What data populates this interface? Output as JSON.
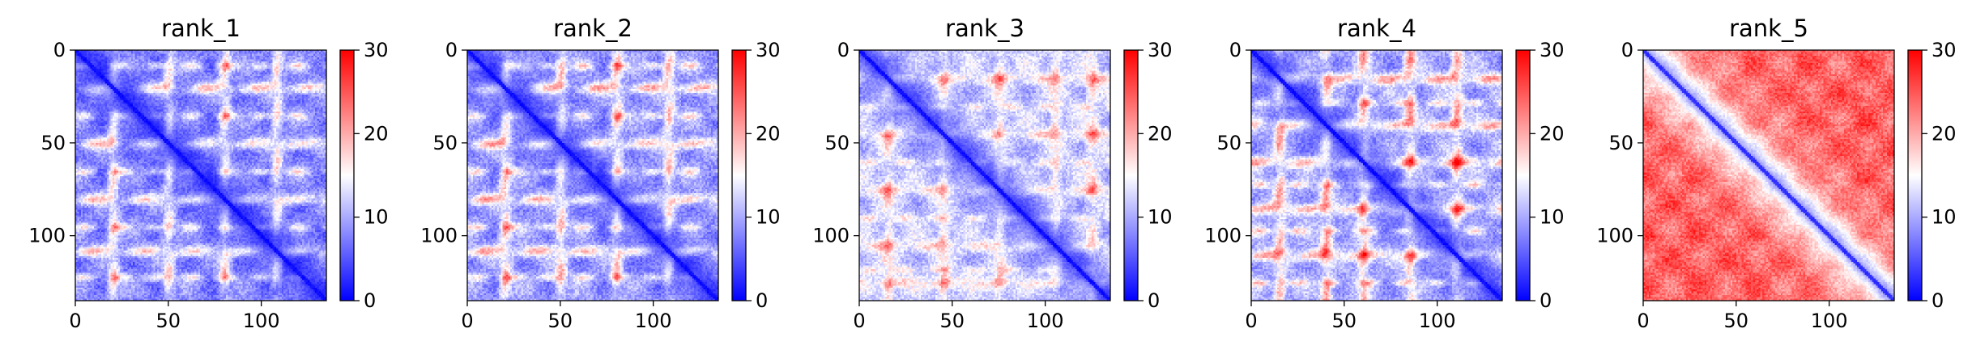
{
  "chart_data": [
    {
      "type": "heatmap",
      "title": "rank_1",
      "xlim": [
        0,
        135
      ],
      "ylim": [
        135,
        0
      ],
      "x_ticks": [
        0,
        50,
        100
      ],
      "y_ticks": [
        0,
        50,
        100
      ],
      "colorbar": {
        "min": 0,
        "max": 30,
        "ticks": [
          0,
          10,
          20,
          30
        ],
        "colormap": "bwr",
        "colors": [
          "#0000ff",
          "#ffffff",
          "#ff0000"
        ]
      },
      "pattern": {
        "diagonal_value": 0,
        "background_value": 8,
        "band_value": 22,
        "band_rows": [
          20,
          50,
          80,
          108
        ],
        "spot_rows": [
          8,
          35,
          65,
          95,
          122
        ],
        "band_strength": 0.8
      }
    },
    {
      "type": "heatmap",
      "title": "rank_2",
      "xlim": [
        0,
        135
      ],
      "ylim": [
        135,
        0
      ],
      "x_ticks": [
        0,
        50,
        100
      ],
      "y_ticks": [
        0,
        50,
        100
      ],
      "colorbar": {
        "min": 0,
        "max": 30,
        "ticks": [
          0,
          10,
          20,
          30
        ],
        "colormap": "bwr",
        "colors": [
          "#0000ff",
          "#ffffff",
          "#ff0000"
        ]
      },
      "pattern": {
        "diagonal_value": 0,
        "background_value": 9,
        "band_value": 23,
        "band_rows": [
          20,
          50,
          80,
          108
        ],
        "spot_rows": [
          8,
          35,
          65,
          95,
          122
        ],
        "band_strength": 0.85
      }
    },
    {
      "type": "heatmap",
      "title": "rank_3",
      "xlim": [
        0,
        135
      ],
      "ylim": [
        135,
        0
      ],
      "x_ticks": [
        0,
        50,
        100
      ],
      "y_ticks": [
        0,
        50,
        100
      ],
      "colorbar": {
        "min": 0,
        "max": 30,
        "ticks": [
          0,
          10,
          20,
          30
        ],
        "colormap": "bwr",
        "colors": [
          "#0000ff",
          "#ffffff",
          "#ff0000"
        ]
      },
      "pattern": {
        "diagonal_value": 0,
        "background_value": 12,
        "band_value": 22,
        "band_rows": [
          15,
          45,
          75,
          105,
          125
        ],
        "spot_rows": [
          30,
          60,
          90,
          118
        ],
        "band_strength": 0.7
      }
    },
    {
      "type": "heatmap",
      "title": "rank_4",
      "xlim": [
        0,
        135
      ],
      "ylim": [
        135,
        0
      ],
      "x_ticks": [
        0,
        50,
        100
      ],
      "y_ticks": [
        0,
        50,
        100
      ],
      "colorbar": {
        "min": 0,
        "max": 30,
        "ticks": [
          0,
          10,
          20,
          30
        ],
        "colormap": "bwr",
        "colors": [
          "#0000ff",
          "#ffffff",
          "#ff0000"
        ]
      },
      "pattern": {
        "diagonal_value": 0,
        "background_value": 10,
        "band_value": 24,
        "band_rows": [
          15,
          40,
          60,
          85,
          110
        ],
        "spot_rows": [
          28,
          72,
          97,
          125
        ],
        "band_strength": 0.85
      }
    },
    {
      "type": "heatmap",
      "title": "rank_5",
      "xlim": [
        0,
        135
      ],
      "ylim": [
        135,
        0
      ],
      "x_ticks": [
        0,
        50,
        100
      ],
      "y_ticks": [
        0,
        50,
        100
      ],
      "colorbar": {
        "min": 0,
        "max": 30,
        "ticks": [
          0,
          10,
          20,
          30
        ],
        "colormap": "bwr",
        "colors": [
          "#0000ff",
          "#ffffff",
          "#ff0000"
        ]
      },
      "pattern": {
        "diagonal_value": 2,
        "background_value": 24,
        "band_value": 27,
        "band_rows": [
          25,
          55,
          85,
          115
        ],
        "spot_rows": [
          40,
          70,
          100
        ],
        "band_strength": 0.4
      }
    }
  ]
}
